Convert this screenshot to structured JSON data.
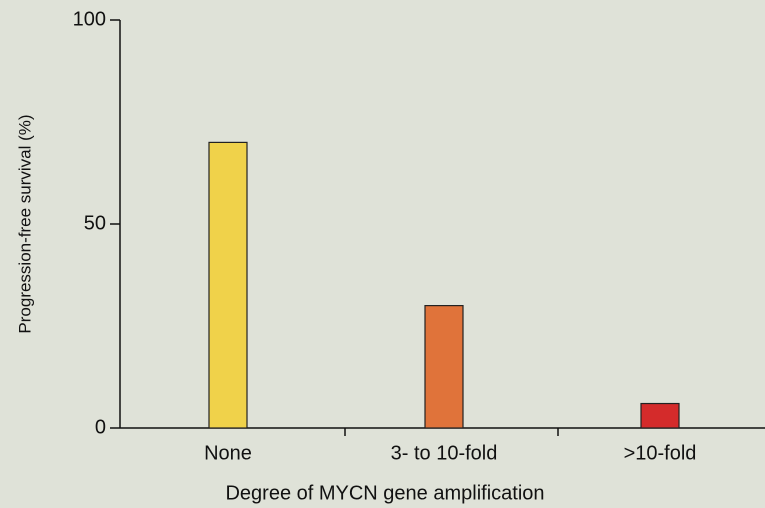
{
  "chart_data": {
    "type": "bar",
    "ylabel": "Progression-free survival (%)",
    "xlabel": "Degree of MYCN gene amplification",
    "categories": [
      "None",
      "3- to 10-fold",
      ">10-fold"
    ],
    "values": [
      70,
      30,
      6
    ],
    "colors": [
      "#f0d24a",
      "#e0733a",
      "#d42b2b"
    ],
    "ylim": [
      0,
      100
    ],
    "yticks": [
      0,
      50,
      100
    ],
    "grid": false
  }
}
